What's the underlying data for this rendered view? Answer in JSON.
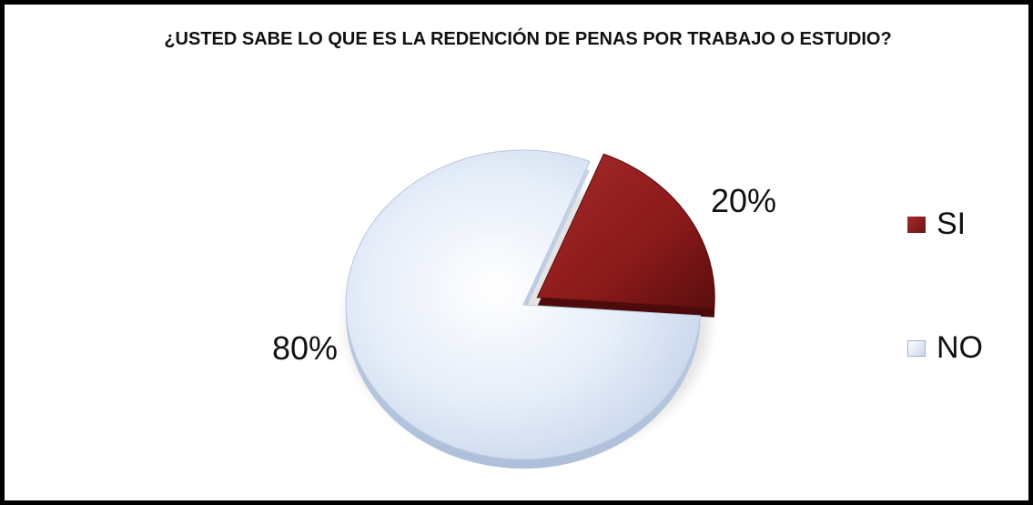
{
  "chart_data": {
    "type": "pie",
    "title": "¿USTED SABE LO QUE ES LA REDENCIÓN DE PENAS POR TRABAJO O ESTUDIO?",
    "categories": [
      "SI",
      "NO"
    ],
    "values": [
      20,
      80
    ],
    "data_labels": [
      "20%",
      "80%"
    ],
    "colors": [
      "#8b1a1a",
      "#dde7f5"
    ],
    "legend_position": "right",
    "style": "3d-tilted",
    "exploded": "SI"
  }
}
